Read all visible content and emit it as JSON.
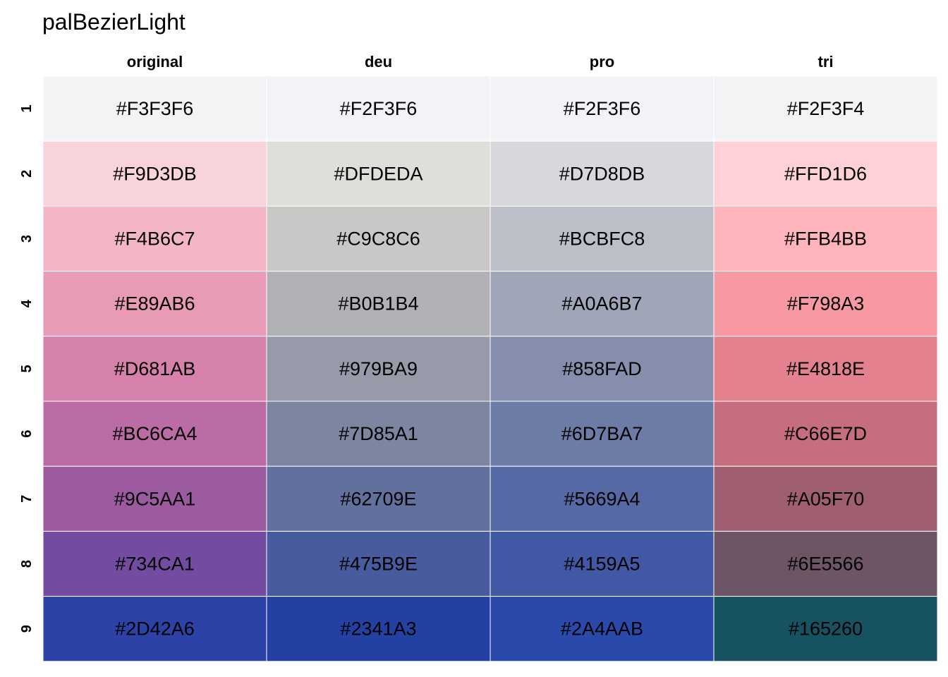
{
  "chart_data": {
    "type": "table",
    "title": "palBezierLight",
    "columns": [
      "original",
      "deu",
      "pro",
      "tri"
    ],
    "rows": [
      "1",
      "2",
      "3",
      "4",
      "5",
      "6",
      "7",
      "8",
      "9"
    ],
    "cells": [
      [
        "#F3F3F6",
        "#F2F3F6",
        "#F2F3F6",
        "#F2F3F4"
      ],
      [
        "#F9D3DB",
        "#DFDEDA",
        "#D7D8DB",
        "#FFD1D6"
      ],
      [
        "#F4B6C7",
        "#C9C8C6",
        "#BCBFC8",
        "#FFB4BB"
      ],
      [
        "#E89AB6",
        "#B0B1B4",
        "#A0A6B7",
        "#F798A3"
      ],
      [
        "#D681AB",
        "#979BA9",
        "#858FAD",
        "#E4818E"
      ],
      [
        "#BC6CA4",
        "#7D85A1",
        "#6D7BA7",
        "#C66E7D"
      ],
      [
        "#9C5AA1",
        "#62709E",
        "#5669A4",
        "#A05F70"
      ],
      [
        "#734CA1",
        "#475B9E",
        "#4159A5",
        "#6E5566"
      ],
      [
        "#2D42A6",
        "#2341A3",
        "#2A4AAB",
        "#165260"
      ]
    ]
  }
}
